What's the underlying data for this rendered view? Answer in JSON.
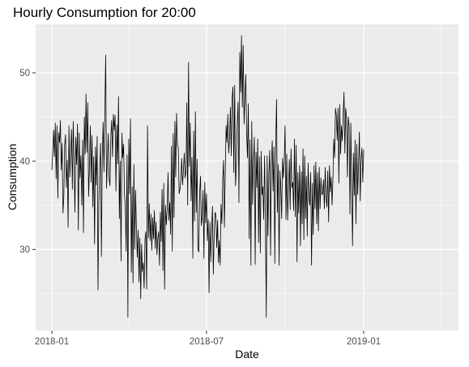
{
  "chart_data": {
    "type": "line",
    "title": "Hourly Consumption for 20:00",
    "xlabel": "Date",
    "ylabel": "Consumption",
    "xlim": [
      "2017-12-13",
      "2019-04-22"
    ],
    "ylim": [
      20.8,
      55.5
    ],
    "x_ticks": [
      {
        "date": "2018-01-01",
        "label": "2018-01"
      },
      {
        "date": "2018-07-01",
        "label": "2018-07"
      },
      {
        "date": "2019-01-01",
        "label": "2019-01"
      }
    ],
    "x_minor_ticks": [
      "2018-04-01",
      "2018-10-01",
      "2019-04-01"
    ],
    "y_ticks": [
      30,
      40,
      50
    ],
    "y_minor_ticks": [
      25,
      35,
      45,
      55
    ],
    "grid": true,
    "colors": {
      "panel": "#ebebeb",
      "grid": "#ffffff",
      "line": "#000000"
    },
    "series": [
      {
        "start_date": "2018-01-01",
        "values": [
          39.0,
          41.0,
          43.5,
          40.5,
          44.3,
          38.0,
          44.0,
          35.8,
          43.2,
          42.1,
          44.6,
          39.0,
          42.0,
          34.1,
          36.0,
          41.8,
          43.0,
          37.0,
          40.1,
          32.5,
          44.0,
          38.2,
          41.0,
          43.6,
          36.8,
          44.5,
          40.0,
          34.2,
          42.7,
          39.6,
          44.2,
          32.2,
          43.2,
          38.1,
          40.6,
          35.0,
          42.4,
          31.9,
          45.0,
          40.8,
          47.6,
          41.0,
          46.6,
          36.0,
          39.3,
          44.0,
          37.6,
          42.9,
          34.8,
          40.5,
          30.6,
          41.6,
          37.3,
          42.8,
          25.4,
          35.2,
          39.2,
          42.0,
          29.2,
          40.4,
          44.4,
          38.8,
          45.5,
          52.0,
          36.9,
          40.2,
          43.1,
          38.0,
          37.2,
          42.7,
          44.6,
          40.5,
          45.3,
          43.5,
          45.2,
          36.6,
          44.1,
          39.7,
          47.3,
          33.5,
          40.0,
          28.7,
          43.2,
          40.4,
          41.9,
          36.2,
          34.7,
          29.8,
          40.7,
          22.3,
          42.5,
          36.3,
          44.8,
          27.4,
          37.1,
          26.2,
          39.6,
          30.0,
          36.7,
          32.2,
          29.1,
          32.2,
          26.3,
          31.3,
          24.4,
          30.6,
          27.5,
          28.5,
          25.6,
          31.1,
          32.0,
          25.5,
          44.0,
          31.3,
          35.2,
          31.0,
          34.0,
          29.9,
          33.6,
          31.2,
          34.4,
          30.1,
          33.1,
          29.4,
          31.2,
          32.0,
          28.2,
          34.2,
          30.9,
          36.8,
          27.6,
          37.5,
          25.5,
          35.0,
          32.8,
          34.5,
          38.7,
          33.3,
          35.3,
          31.7,
          41.7,
          29.8,
          43.1,
          33.6,
          44.5,
          38.2,
          45.4,
          41.7,
          41.6,
          36.3,
          36.8,
          38.0,
          40.3,
          37.3,
          38.9,
          40.9,
          38.1,
          38.8,
          46.6,
          35.0,
          51.2,
          39.4,
          44.3,
          35.5,
          40.4,
          29.0,
          43.4,
          33.2,
          45.6,
          34.2,
          40.2,
          30.0,
          29.7,
          36.4,
          38.3,
          32.7,
          33.6,
          36.7,
          29.0,
          37.6,
          33.0,
          36.3,
          31.0,
          33.4,
          25.1,
          33.1,
          28.6,
          32.2,
          34.9,
          27.2,
          31.7,
          34.2,
          33.9,
          30.2,
          33.3,
          28.5,
          31.0,
          28.2,
          35.1,
          32.9,
          37.8,
          40.1,
          32.5,
          38.8,
          44.0,
          42.1,
          45.3,
          40.9,
          42.5,
          46.1,
          40.6,
          47.1,
          48.4,
          38.7,
          48.6,
          37.2,
          39.6,
          44.1,
          46.7,
          35.3,
          52.3,
          47.8,
          54.2,
          46.1,
          53.1,
          44.2,
          47.2,
          49.8,
          43.1,
          40.4,
          46.5,
          31.2,
          42.4,
          28.2,
          44.5,
          35.1,
          39.8,
          42.7,
          28.3,
          41.0,
          37.0,
          42.5,
          30.8,
          40.5,
          29.6,
          41.1,
          36.2,
          37.1,
          33.4,
          40.6,
          33.2,
          22.3,
          40.6,
          31.5,
          38.6,
          41.2,
          29.3,
          39.6,
          42.3,
          36.6,
          41.6,
          28.4,
          41.5,
          47.0,
          34.2,
          39.6,
          28.2,
          38.9,
          37.1,
          33.5,
          40.3,
          38.1,
          40.0,
          44.0,
          33.4,
          40.8,
          33.3,
          36.8,
          40.2,
          34.5,
          41.4,
          37.0,
          37.6,
          34.4,
          42.5,
          33.7,
          41.8,
          28.6,
          38.7,
          34.1,
          39.5,
          30.4,
          38.8,
          32.9,
          41.4,
          31.1,
          40.6,
          33.5,
          38.3,
          31.5,
          39.8,
          35.8,
          35.0,
          38.7,
          28.2,
          37.5,
          31.7,
          39.5,
          34.6,
          39.9,
          32.9,
          38.7,
          32.1,
          39.3,
          34.6,
          38.1,
          36.2,
          36.3,
          37.9,
          34.6,
          39.3,
          35.7,
          34.8,
          38.9,
          33.1,
          39.5,
          36.5,
          38.2,
          35.0,
          37.8,
          42.5,
          40.4,
          46.0,
          45.2,
          42.4,
          46.0,
          37.5,
          46.4,
          40.8,
          44.0,
          42.3,
          45.1,
          47.8,
          40.9,
          46.0,
          44.9,
          38.2,
          45.0,
          43.9,
          34.0,
          44.3,
          37.1,
          30.4,
          40.9,
          36.1,
          42.4,
          32.9,
          41.9,
          36.2,
          39.4,
          43.3,
          35.5,
          40.2,
          41.5,
          37.6,
          41.3
        ]
      }
    ]
  }
}
